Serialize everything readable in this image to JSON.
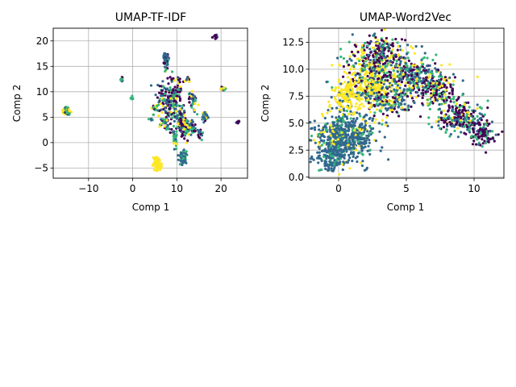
{
  "figure": {
    "background": "#ffffff"
  },
  "palette": {
    "purple": "#440154",
    "blue": "#31688e",
    "green": "#35b779",
    "yellow": "#fde725",
    "grid": "#b0b0b0",
    "axis": "#000000"
  },
  "chart_data": [
    {
      "type": "scatter",
      "title": "UMAP-TF-IDF",
      "xlabel": "Comp  1",
      "ylabel": "Comp  2",
      "xlim": [
        -18,
        26
      ],
      "ylim": [
        -7,
        22.5
      ],
      "xticks": [
        -10,
        0,
        10,
        20
      ],
      "xtick_labels": [
        "−10",
        "0",
        "10",
        "20"
      ],
      "yticks": [
        -5,
        0,
        5,
        10,
        15,
        20
      ],
      "ytick_labels": [
        "−5",
        "0",
        "5",
        "10",
        "15",
        "20"
      ],
      "grid": true,
      "series_colors": [
        "purple",
        "blue",
        "green",
        "yellow"
      ],
      "clusters": [
        {
          "x": -15,
          "y": 6.3,
          "sx": 0.4,
          "sy": 0.4,
          "w": [
            1,
            1,
            2,
            2
          ],
          "n": 70
        },
        {
          "x": -2.5,
          "y": 12.3,
          "sx": 0.2,
          "sy": 0.2,
          "w": [
            1,
            1,
            1,
            0
          ],
          "n": 12
        },
        {
          "x": -0.2,
          "y": 8.8,
          "sx": 0.15,
          "sy": 0.15,
          "w": [
            0,
            1,
            2,
            0
          ],
          "n": 8
        },
        {
          "x": 7.5,
          "y": 16.5,
          "sx": 0.3,
          "sy": 0.8,
          "w": [
            1,
            3,
            1,
            0
          ],
          "n": 60
        },
        {
          "x": 5.5,
          "y": -4,
          "sx": 0.4,
          "sy": 0.6,
          "w": [
            0,
            0,
            0,
            1
          ],
          "n": 80
        },
        {
          "x": 11.5,
          "y": -3,
          "sx": 0.4,
          "sy": 0.6,
          "w": [
            0,
            3,
            1,
            0
          ],
          "n": 70
        },
        {
          "x": 8.5,
          "y": 8,
          "sx": 1.5,
          "sy": 2.2,
          "w": [
            3,
            2,
            2,
            1
          ],
          "n": 230
        },
        {
          "x": 11.5,
          "y": 3.5,
          "sx": 1.0,
          "sy": 1.3,
          "w": [
            2,
            2,
            1,
            1
          ],
          "n": 110
        },
        {
          "x": 13.5,
          "y": 8.5,
          "sx": 0.6,
          "sy": 0.8,
          "w": [
            2,
            1,
            1,
            1
          ],
          "n": 40
        },
        {
          "x": 16.5,
          "y": 5,
          "sx": 0.35,
          "sy": 0.6,
          "w": [
            1,
            2,
            1,
            1
          ],
          "n": 30
        },
        {
          "x": 20.5,
          "y": 10.6,
          "sx": 0.3,
          "sy": 0.2,
          "w": [
            1,
            0,
            1,
            2
          ],
          "n": 20
        },
        {
          "x": 18.7,
          "y": 21,
          "sx": 0.3,
          "sy": 0.25,
          "w": [
            2,
            1,
            0,
            0
          ],
          "n": 14
        },
        {
          "x": 23.8,
          "y": 4,
          "sx": 0.2,
          "sy": 0.2,
          "w": [
            1,
            1,
            0,
            0
          ],
          "n": 10
        },
        {
          "x": 9.5,
          "y": 0.8,
          "sx": 0.35,
          "sy": 0.8,
          "w": [
            0,
            1,
            2,
            1
          ],
          "n": 25
        },
        {
          "x": 10.3,
          "y": 12.3,
          "sx": 0.3,
          "sy": 0.3,
          "w": [
            1,
            0,
            1,
            1
          ],
          "n": 14
        },
        {
          "x": 12.5,
          "y": 12.5,
          "sx": 0.3,
          "sy": 0.3,
          "w": [
            1,
            1,
            0,
            1
          ],
          "n": 12
        },
        {
          "x": 5,
          "y": 7,
          "sx": 0.4,
          "sy": 0.3,
          "w": [
            1,
            0,
            1,
            1
          ],
          "n": 14
        },
        {
          "x": 4.2,
          "y": 4.6,
          "sx": 0.2,
          "sy": 0.15,
          "w": [
            0,
            1,
            1,
            0
          ],
          "n": 6
        },
        {
          "x": 15.3,
          "y": 1.5,
          "sx": 0.35,
          "sy": 0.6,
          "w": [
            1,
            1,
            1,
            0
          ],
          "n": 18
        },
        {
          "x": 7,
          "y": 3.8,
          "sx": 0.6,
          "sy": 0.5,
          "w": [
            1,
            1,
            1,
            1
          ],
          "n": 20
        },
        {
          "x": 13.5,
          "y": 2.5,
          "sx": 0.5,
          "sy": 0.6,
          "w": [
            1,
            1,
            1,
            1
          ],
          "n": 20
        }
      ]
    },
    {
      "type": "scatter",
      "title": "UMAP-Word2Vec",
      "xlabel": "Comp  1",
      "ylabel": "Comp  2",
      "xlim": [
        -2.2,
        12.2
      ],
      "ylim": [
        -0.1,
        13.8
      ],
      "xticks": [
        0,
        5,
        10
      ],
      "xtick_labels": [
        "0",
        "5",
        "10"
      ],
      "yticks": [
        0,
        2.5,
        5,
        7.5,
        10,
        12.5
      ],
      "ytick_labels": [
        "0.0",
        "2.5",
        "5.0",
        "7.5",
        "10.0",
        "12.5"
      ],
      "grid": true,
      "series_colors": [
        "purple",
        "blue",
        "green",
        "yellow"
      ],
      "clusters": [
        {
          "x": 0.5,
          "y": 3.8,
          "sx": 1.1,
          "sy": 1.2,
          "w": [
            0,
            6,
            1,
            1
          ],
          "n": 650
        },
        {
          "x": -0.5,
          "y": 1.6,
          "sx": 0.5,
          "sy": 0.6,
          "w": [
            0,
            5,
            1,
            0
          ],
          "n": 120
        },
        {
          "x": 2.2,
          "y": 8.5,
          "sx": 1.0,
          "sy": 1.5,
          "w": [
            1,
            1,
            1,
            6
          ],
          "n": 420
        },
        {
          "x": 0.5,
          "y": 7.6,
          "sx": 0.5,
          "sy": 0.6,
          "w": [
            0,
            1,
            0,
            5
          ],
          "n": 110
        },
        {
          "x": 3,
          "y": 11.3,
          "sx": 1.1,
          "sy": 0.9,
          "w": [
            3,
            2,
            2,
            2
          ],
          "n": 250
        },
        {
          "x": 5.2,
          "y": 9.5,
          "sx": 1.0,
          "sy": 0.8,
          "w": [
            2,
            2,
            2,
            1
          ],
          "n": 240
        },
        {
          "x": 7.2,
          "y": 8,
          "sx": 0.9,
          "sy": 0.9,
          "w": [
            3,
            1,
            2,
            1
          ],
          "n": 220
        },
        {
          "x": 9,
          "y": 5.5,
          "sx": 0.8,
          "sy": 0.7,
          "w": [
            4,
            2,
            2,
            1
          ],
          "n": 220
        },
        {
          "x": 10.6,
          "y": 4,
          "sx": 0.45,
          "sy": 0.6,
          "w": [
            4,
            1,
            2,
            0
          ],
          "n": 110
        },
        {
          "x": 4,
          "y": 7.2,
          "sx": 0.8,
          "sy": 0.8,
          "w": [
            1,
            2,
            1,
            1
          ],
          "n": 140
        }
      ]
    }
  ]
}
